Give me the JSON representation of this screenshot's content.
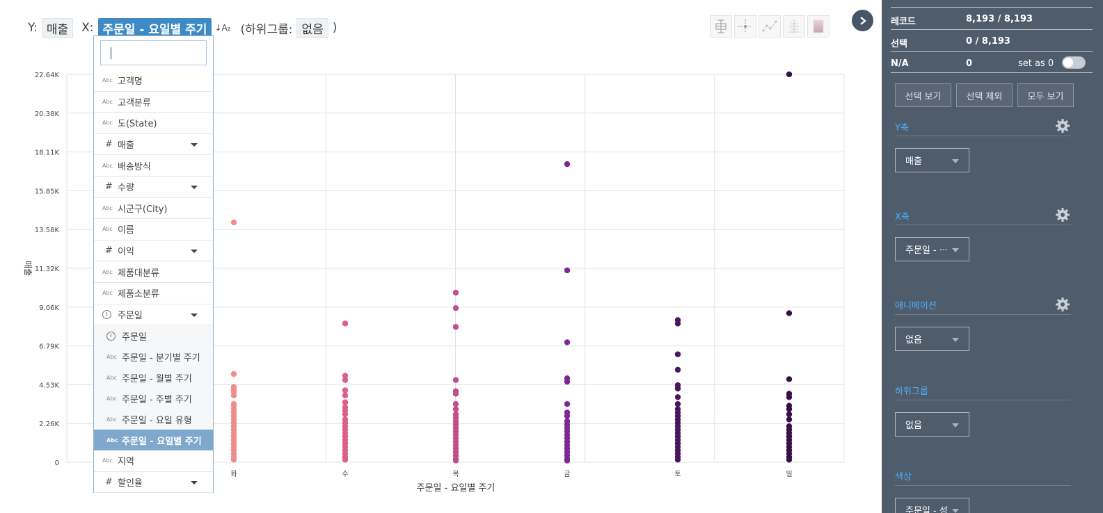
{
  "header": {
    "y_label": "Y:",
    "y_value": "매출",
    "x_label": "X:",
    "x_value": "주문일 - 요일별 주기",
    "sort_icon_text": "↓A₂",
    "subgroup_open": "(하위그룹:",
    "subgroup_value": "없음",
    "subgroup_close": ")"
  },
  "toolbar": {
    "icons": [
      "boxplot-icon",
      "crosshair-icon",
      "trendline-icon",
      "jitter-icon",
      "gradient-icon"
    ]
  },
  "dropdown": {
    "search_value": "",
    "items": [
      {
        "icon": "Abc",
        "label": "고객명",
        "expandable": false
      },
      {
        "icon": "Abc",
        "label": "고객분류",
        "expandable": false
      },
      {
        "icon": "Abc",
        "label": "도(State)",
        "expandable": false
      },
      {
        "icon": "#",
        "label": "매출",
        "expandable": true
      },
      {
        "icon": "Abc",
        "label": "배송방식",
        "expandable": false
      },
      {
        "icon": "#",
        "label": "수량",
        "expandable": true
      },
      {
        "icon": "Abc",
        "label": "시군구(City)",
        "expandable": false
      },
      {
        "icon": "Abc",
        "label": "이름",
        "expandable": false
      },
      {
        "icon": "#",
        "label": "이익",
        "expandable": true
      },
      {
        "icon": "Abc",
        "label": "제품대분류",
        "expandable": false
      },
      {
        "icon": "Abc",
        "label": "제품소분류",
        "expandable": false
      },
      {
        "icon": "clock",
        "label": "주문일",
        "expandable": true
      },
      {
        "icon": "clock",
        "label": "주문일",
        "expandable": false,
        "sub": true
      },
      {
        "icon": "Abc",
        "label": "주문일 - 분기별 주기",
        "expandable": false,
        "sub": true
      },
      {
        "icon": "Abc",
        "label": "주문일 - 월별 주기",
        "expandable": false,
        "sub": true
      },
      {
        "icon": "Abc",
        "label": "주문일 - 주별 주기",
        "expandable": false,
        "sub": true
      },
      {
        "icon": "Abc",
        "label": "주문일 - 요일 유형",
        "expandable": false,
        "sub": true
      },
      {
        "icon": "Abc",
        "label": "주문일 - 요일별 주기",
        "expandable": false,
        "sub": true,
        "selected": true
      },
      {
        "icon": "Abc",
        "label": "지역",
        "expandable": false
      },
      {
        "icon": "#",
        "label": "할인율",
        "expandable": true
      }
    ]
  },
  "panel": {
    "records_label": "레코드",
    "records_value": "8,193 / 8,193",
    "selection_label": "선택",
    "selection_value": "0 / 8,193",
    "na_label": "N/A",
    "na_value": "0",
    "set_as_zero": "set as 0",
    "buttons": [
      "선택 보기",
      "선택 제외",
      "모두 보기"
    ],
    "y_axis_title": "Y축",
    "y_axis_value": "매출",
    "x_axis_title": "X축",
    "x_axis_value": "주문일 - ···",
    "animation_title": "애니메이션",
    "animation_value": "없음",
    "subgroup_title": "하위그룹",
    "subgroup_value": "없음",
    "color_title": "색상",
    "color_value": "주문일 - 성"
  },
  "colors": {
    "accent": "#3d8ac4",
    "panel_bg": "#4f5c6b",
    "section_title": "#4fb0ff"
  },
  "chart_data": {
    "type": "scatter",
    "xlabel": "주문일 - 요일별 주기",
    "ylabel": "매출",
    "categories": [
      "화",
      "수",
      "목",
      "금",
      "토",
      "일"
    ],
    "visible_tick_labels": [
      "화",
      "수",
      "목",
      "금",
      "토",
      "일"
    ],
    "y_ticks": [
      "0",
      "2.26K",
      "4.53K",
      "6.79K",
      "9.06K",
      "11.32K",
      "13.58K",
      "15.85K",
      "18.11K",
      "20.38K",
      "22.64K"
    ],
    "ylim": [
      0,
      22638
    ],
    "grid": true,
    "series": [
      {
        "category": "화",
        "color": "#f08c8c",
        "values": [
          14000,
          5150,
          4400,
          4250,
          4100,
          3900,
          3400,
          3300,
          3100,
          2900,
          2700,
          2500,
          2300,
          2100,
          1900,
          1700,
          1500,
          1300,
          1100,
          900,
          700,
          500,
          300,
          150
        ]
      },
      {
        "category": "수",
        "color": "#dd5e8c",
        "values": [
          8100,
          5050,
          4800,
          4200,
          3900,
          3500,
          3200,
          3000,
          2800,
          2500,
          2300,
          2100,
          1900,
          1700,
          1500,
          1300,
          1100,
          900,
          700,
          500,
          300,
          150
        ]
      },
      {
        "category": "목",
        "color": "#c04f8c",
        "values": [
          9900,
          9000,
          7900,
          4800,
          4150,
          4000,
          3400,
          3100,
          2800,
          2600,
          2400,
          2200,
          2000,
          1800,
          1600,
          1400,
          1200,
          1000,
          800,
          600,
          400,
          200,
          100
        ]
      },
      {
        "category": "금",
        "color": "#7d2794",
        "values": [
          17400,
          11200,
          7000,
          4900,
          4700,
          3400,
          2900,
          2700,
          2400,
          2200,
          2000,
          1800,
          1600,
          1400,
          1200,
          1000,
          800,
          600,
          400,
          200,
          100
        ]
      },
      {
        "category": "토",
        "color": "#4b1560",
        "values": [
          8300,
          8100,
          6300,
          5400,
          4500,
          4300,
          3800,
          3400,
          3100,
          2900,
          2700,
          2500,
          2300,
          2100,
          1900,
          1700,
          1500,
          1300,
          1100,
          900,
          700,
          500,
          300,
          150
        ]
      },
      {
        "category": "일",
        "color": "#37104a",
        "values": [
          22640,
          8700,
          4850,
          4000,
          3800,
          3300,
          3100,
          2800,
          2500,
          2100,
          1900,
          1700,
          1500,
          1300,
          1100,
          900,
          700,
          500,
          300,
          150
        ]
      }
    ]
  }
}
